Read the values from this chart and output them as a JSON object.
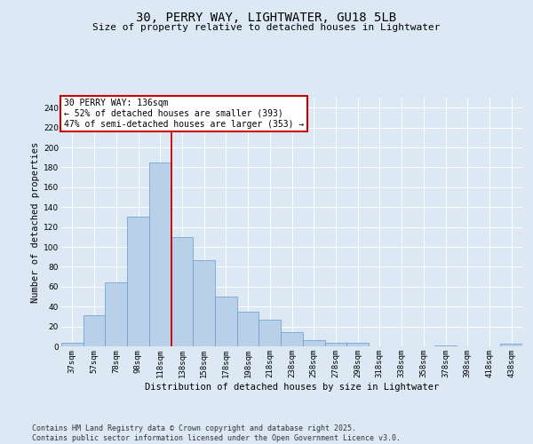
{
  "title": "30, PERRY WAY, LIGHTWATER, GU18 5LB",
  "subtitle": "Size of property relative to detached houses in Lightwater",
  "xlabel": "Distribution of detached houses by size in Lightwater",
  "ylabel": "Number of detached properties",
  "bar_labels": [
    "37sqm",
    "57sqm",
    "78sqm",
    "98sqm",
    "118sqm",
    "138sqm",
    "158sqm",
    "178sqm",
    "198sqm",
    "218sqm",
    "238sqm",
    "258sqm",
    "278sqm",
    "298sqm",
    "318sqm",
    "338sqm",
    "358sqm",
    "378sqm",
    "398sqm",
    "418sqm",
    "438sqm"
  ],
  "bar_values": [
    4,
    31,
    64,
    130,
    185,
    110,
    87,
    50,
    35,
    27,
    14,
    6,
    4,
    4,
    0,
    0,
    0,
    1,
    0,
    0,
    3
  ],
  "bar_color": "#b8d0e8",
  "bar_edge_color": "#6699cc",
  "vline_color": "#cc0000",
  "vline_x_index": 4.5,
  "annotation_text": "30 PERRY WAY: 136sqm\n← 52% of detached houses are smaller (393)\n47% of semi-detached houses are larger (353) →",
  "ylim": [
    0,
    250
  ],
  "yticks": [
    0,
    20,
    40,
    60,
    80,
    100,
    120,
    140,
    160,
    180,
    200,
    220,
    240
  ],
  "bg_color": "#dce9f5",
  "footer_line1": "Contains HM Land Registry data © Crown copyright and database right 2025.",
  "footer_line2": "Contains public sector information licensed under the Open Government Licence v3.0.",
  "title_fontsize": 10,
  "subtitle_fontsize": 8,
  "axis_label_fontsize": 7.5,
  "tick_fontsize": 6.5,
  "annotation_fontsize": 7,
  "footer_fontsize": 6
}
